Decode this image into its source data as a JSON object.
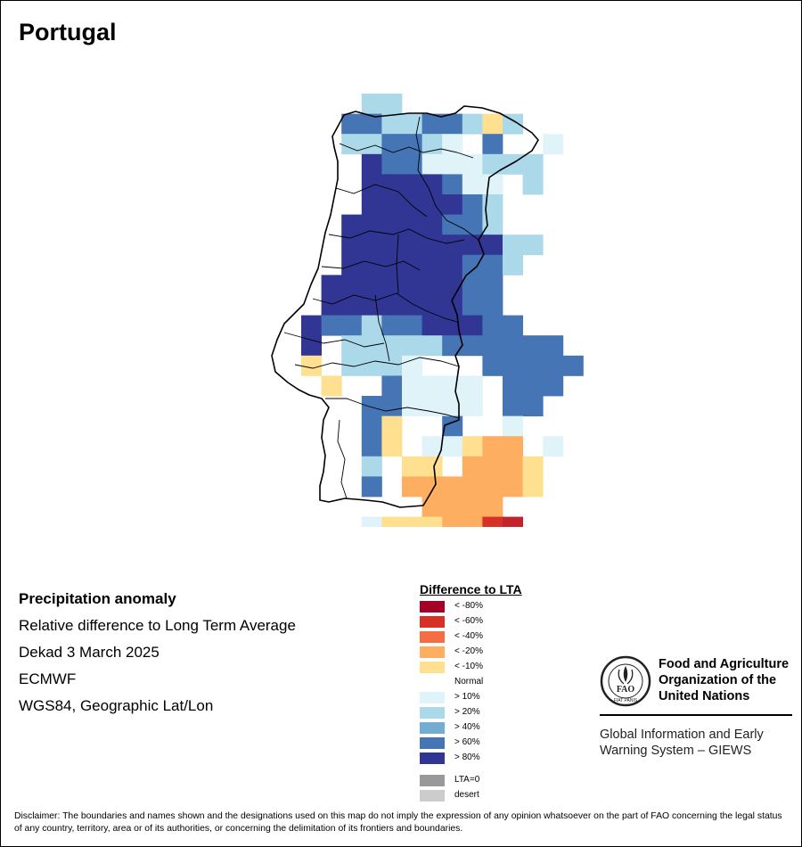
{
  "map": {
    "title": "Portugal",
    "description": {
      "heading": "Precipitation anomaly",
      "lines": [
        "Relative difference to Long Term Average",
        "Dekad 3 March 2025",
        "ECMWF",
        "WGS84, Geographic Lat/Lon"
      ]
    },
    "legend": {
      "title": "Difference to LTA",
      "classes": [
        {
          "label": "< -80%",
          "color": "#a50026"
        },
        {
          "label": "< -60%",
          "color": "#d73027"
        },
        {
          "label": "< -40%",
          "color": "#f46d43"
        },
        {
          "label": "< -20%",
          "color": "#fdae61"
        },
        {
          "label": "< -10%",
          "color": "#fee090"
        },
        {
          "label": "Normal",
          "color": "#ffffff"
        },
        {
          "label": "> 10%",
          "color": "#e0f3f8"
        },
        {
          "label": "> 20%",
          "color": "#abd9e9"
        },
        {
          "label": "> 40%",
          "color": "#74add1"
        },
        {
          "label": "> 60%",
          "color": "#4575b4"
        },
        {
          "label": "> 80%",
          "color": "#313695"
        }
      ],
      "extra": [
        {
          "label": "LTA=0",
          "color": "#999999"
        },
        {
          "label": "desert",
          "color": "#cccccc"
        }
      ]
    }
  },
  "organization": {
    "name_lines": [
      "Food and Agriculture",
      "Organization of the",
      "United Nations"
    ],
    "logo_text": "FAO",
    "logo_motto": "FIAT PANIS",
    "program_lines": [
      "Global Information and Early",
      "Warning System – GIEWS"
    ]
  },
  "disclaimer": "Disclaimer: The boundaries and names shown and the designations used on this map do not imply the expression of any opinion whatsoever on the part of FAO concerning the legal status of any country, territory, area or of its authorities, or concerning the delimitation of its frontiers and boundaries.",
  "grid": {
    "rows": [
      ". . . . . . . . . . b b . . . . . . . . . .",
      ". . . . . . . . . C C b b C C b y b . . . .",
      ". . . . . . . . . b b C C b d . C . . d . .",
      ". . . . . . . . . . D C C d d d b b b . . .",
      ". . . . . . . . . . D D D D C d d . b . . .",
      ". . . . . . . . . . D D D D D C b . . . . .",
      ". . . . . . . . . D D D D D C C b . . . . .",
      ". . . . . . . . . D D D D D D D D b b . . .",
      ". . . . . . . . . D D D D D D C C b . . . .",
      ". . . . . . . . D D D D D D D C C . . . . .",
      ". . . . . . . . D D D D D D D C C . . . . .",
      ". . . . . . . D C C b C C D D D C C . . . .",
      ". . . . . . . D . b b b b b C C C C C C . .",
      ". . . . . . . y . b b b d . . . C C C C C .",
      ". . . . . . . . y . . C d d d d . C C C . .",
      ". . . . . . . . . . C C d d d d . C C . . .",
      ". . . . . . . . . . C y . . C . . d . . . .",
      ". . . . . . . . . . C y . d d y o o . d . .",
      ". . . . . . . . . . b . y y . o o o y . . .",
      ". . . . . . . . . . C . o o o o o o y . . .",
      ". . . . . . . . . . . . . o o o o . . . . .",
      ". . . . . . . . . . d y y y o o R r . . . .",
      ". . . . . . . . . . . . . . . . . . . . . ."
    ]
  }
}
